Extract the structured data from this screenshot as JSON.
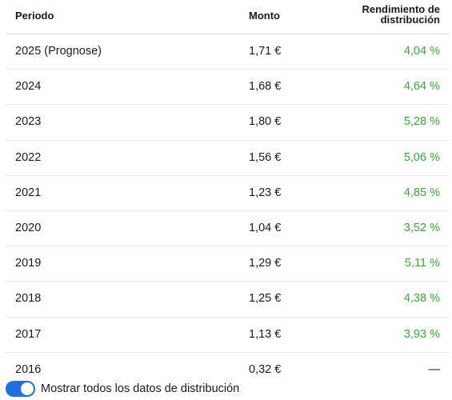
{
  "table": {
    "headers": {
      "periodo": "Periodo",
      "monto": "Monto",
      "rendimiento_line1": "Rendimiento de",
      "rendimiento_line2": "distribución"
    },
    "rows": [
      {
        "periodo": "2025 (Prognose)",
        "monto": "1,71 €",
        "rendimiento": "4,04 %"
      },
      {
        "periodo": "2024",
        "monto": "1,68 €",
        "rendimiento": "4,64 %"
      },
      {
        "periodo": "2023",
        "monto": "1,80 €",
        "rendimiento": "5,28 %"
      },
      {
        "periodo": "2022",
        "monto": "1,56 €",
        "rendimiento": "5,06 %"
      },
      {
        "periodo": "2021",
        "monto": "1,23 €",
        "rendimiento": "4,85 %"
      },
      {
        "periodo": "2020",
        "monto": "1,04 €",
        "rendimiento": "3,52 %"
      },
      {
        "periodo": "2019",
        "monto": "1,29 €",
        "rendimiento": "5,11 %"
      },
      {
        "periodo": "2018",
        "monto": "1,25 €",
        "rendimiento": "4,38 %"
      },
      {
        "periodo": "2017",
        "monto": "1,13 €",
        "rendimiento": "3,93 %"
      },
      {
        "periodo": "2016",
        "monto": "0,32 €",
        "rendimiento": "—"
      }
    ]
  },
  "toggle": {
    "label": "Mostrar todos los datos de distribución",
    "state": "on"
  },
  "colors": {
    "positive": "#3aa83a",
    "toggle_on": "#1f6fe0",
    "divider": "#e6e6e6"
  }
}
